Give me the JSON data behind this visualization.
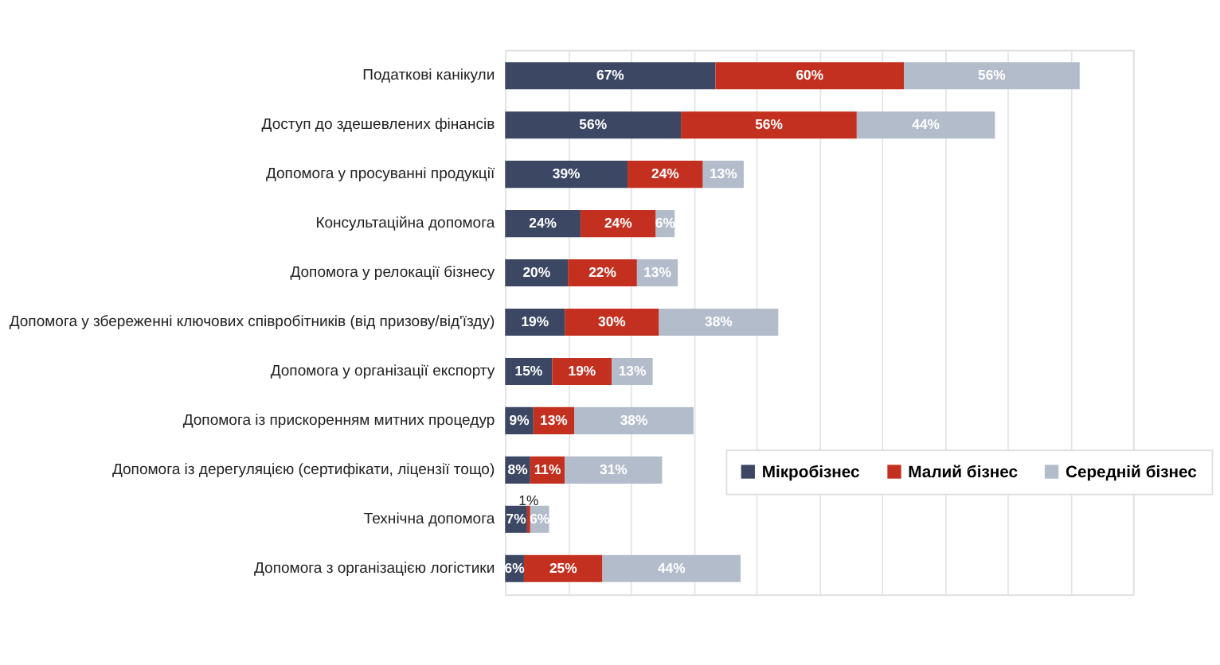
{
  "chart_data": {
    "type": "bar",
    "orientation": "horizontal",
    "stacked": true,
    "categories": [
      "Податкові канікули",
      "Доступ до здешевлених фінансів",
      "Допомога у просуванні продукції",
      "Консультаційна допомога",
      "Допомога у релокації бізнесу",
      "Допомога у збереженні ключових співробітників (від призову/від'їзду)",
      "Допомога у організації експорту",
      "Допомога із прискоренням митних процедур",
      "Допомога із дерегуляцією (сертифікати, ліцензії тощо)",
      "Технічна допомога",
      "Допомога з організацією логістики"
    ],
    "series": [
      {
        "name": "Мікробізнес",
        "color": "#3b4763",
        "values": [
          67,
          56,
          39,
          24,
          20,
          19,
          15,
          9,
          8,
          7,
          6
        ],
        "value_labels": [
          "67%",
          "56%",
          "39%",
          "24%",
          "20%",
          "19%",
          "15%",
          "9%",
          "8%",
          "7%",
          "6%"
        ]
      },
      {
        "name": "Малий бізнес",
        "color": "#c4301f",
        "values": [
          60,
          56,
          24,
          24,
          22,
          30,
          19,
          13,
          11,
          1,
          25
        ],
        "value_labels": [
          "60%",
          "56%",
          "24%",
          "24%",
          "22%",
          "30%",
          "19%",
          "13%",
          "11%",
          "1%",
          "25%"
        ]
      },
      {
        "name": "Середній бізнес",
        "color": "#b3bccb",
        "values": [
          56,
          44,
          13,
          6,
          13,
          38,
          13,
          38,
          31,
          6,
          44
        ],
        "value_labels": [
          "56%",
          "44%",
          "13%",
          "6%",
          "13%",
          "38%",
          "13%",
          "38%",
          "31%",
          "6%",
          "44%"
        ]
      }
    ],
    "xlim": [
      0,
      200
    ],
    "xticks": [
      {
        "value": 0,
        "label": null
      },
      {
        "value": 20,
        "label": null
      },
      {
        "value": 40,
        "label": null
      },
      {
        "value": 60,
        "label": null
      },
      {
        "value": 80,
        "label": null
      },
      {
        "value": 100,
        "label": null
      },
      {
        "value": 120,
        "label": null
      },
      {
        "value": 140,
        "label": null
      },
      {
        "value": 160,
        "label": null
      },
      {
        "value": 180,
        "label": null
      },
      {
        "value": 200,
        "label": null
      }
    ],
    "grid": "x",
    "tick_labels": "y",
    "legend": "right"
  }
}
